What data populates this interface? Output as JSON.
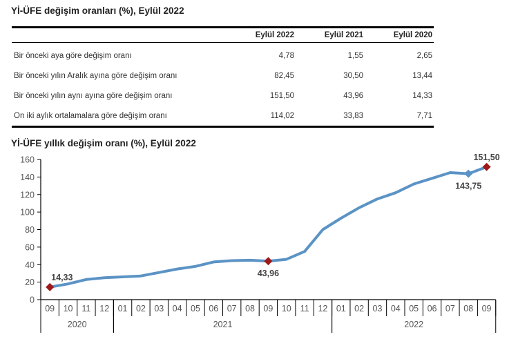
{
  "table": {
    "title": "Yİ-ÜFE değişim oranları (%), Eylül 2022",
    "headers": [
      "",
      "Eylül 2022",
      "Eylül 2021",
      "Eylül 2020"
    ],
    "rows": [
      {
        "label": "Bir önceki aya göre değişim oranı",
        "values": [
          "4,78",
          "1,55",
          "2,65"
        ]
      },
      {
        "label": "Bir önceki yılın Aralık ayına göre değişim oranı",
        "values": [
          "82,45",
          "30,50",
          "13,44"
        ]
      },
      {
        "label": "Bir önceki yılın aynı ayına göre değişim oranı",
        "values": [
          "151,50",
          "43,96",
          "14,33"
        ]
      },
      {
        "label": "On iki aylık ortalamalara göre değişim oranı",
        "values": [
          "114,02",
          "33,83",
          "7,71"
        ]
      }
    ]
  },
  "chart_data": {
    "type": "line",
    "title": "Yİ-ÜFE yıllık değişim oranı (%), Eylül 2022",
    "xlabel": "",
    "ylabel": "",
    "ylim": [
      0,
      160
    ],
    "yticks": [
      0,
      20,
      40,
      60,
      80,
      100,
      120,
      140,
      160
    ],
    "grid": false,
    "categories": [
      "09",
      "10",
      "11",
      "12",
      "01",
      "02",
      "03",
      "04",
      "05",
      "06",
      "07",
      "08",
      "09",
      "10",
      "11",
      "12",
      "01",
      "02",
      "03",
      "04",
      "05",
      "06",
      "07",
      "08",
      "09"
    ],
    "year_groups": [
      {
        "label": "2020",
        "start": 0,
        "count": 4
      },
      {
        "label": "2021",
        "start": 4,
        "count": 12
      },
      {
        "label": "2022",
        "start": 16,
        "count": 9
      }
    ],
    "series": [
      {
        "name": "Yİ-ÜFE yıllık değişim oranı",
        "color": "#5b93c5",
        "values": [
          14.33,
          18.0,
          23.0,
          25.0,
          26.0,
          27.0,
          31.0,
          35.0,
          38.0,
          43.0,
          44.5,
          45.0,
          43.96,
          46.0,
          55.0,
          80.0,
          93.0,
          105.0,
          115.0,
          122.0,
          132.0,
          138.5,
          145.0,
          143.75,
          151.5
        ]
      }
    ],
    "annotations": [
      {
        "index": 0,
        "label": "14,33",
        "marker_color": "#a01818",
        "position": "above"
      },
      {
        "index": 12,
        "label": "43,96",
        "marker_color": "#a01818",
        "position": "below"
      },
      {
        "index": 23,
        "label": "143,75",
        "marker_color": "#5b93c5",
        "position": "below"
      },
      {
        "index": 24,
        "label": "151,50",
        "marker_color": "#a01818",
        "position": "above"
      }
    ]
  }
}
